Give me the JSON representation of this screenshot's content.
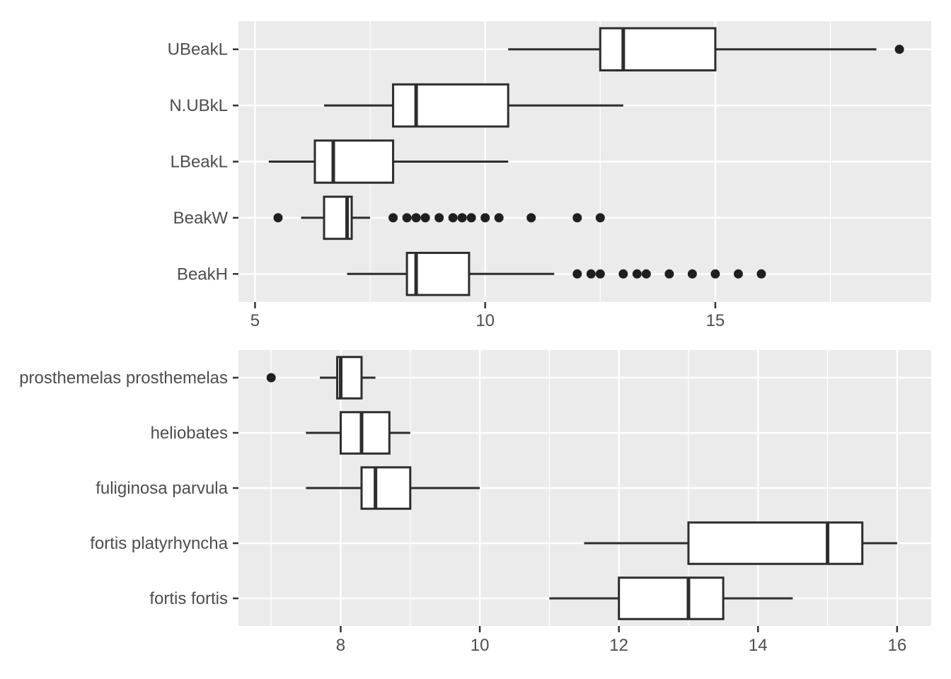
{
  "style": {
    "page_bg": "#FFFFFF",
    "panel_bg": "#EBEBEB",
    "grid_color": "#FFFFFF",
    "box_fill": "#FFFFFF",
    "box_stroke": "#2D2D2D",
    "outlier_color": "#1F1F1F",
    "axis_text_color": "#4D4D4D",
    "tick_color": "#333333"
  },
  "chart_data": [
    {
      "type": "boxplot",
      "orientation": "horizontal",
      "title": "",
      "xlabel": "",
      "ylabel": "",
      "grid": "on",
      "legend": "none",
      "xlim": [
        4.64,
        19.69
      ],
      "x_ticks": [
        5,
        10,
        15
      ],
      "x_minor": [
        7.5,
        12.5,
        17.5
      ],
      "categories": [
        "UBeakL",
        "N.UBkL",
        "LBeakL",
        "BeakW",
        "BeakH"
      ],
      "series": [
        {
          "category": "UBeakL",
          "whisker_low": 10.5,
          "q1": 12.5,
          "median": 13.0,
          "q3": 15.0,
          "whisker_high": 18.5,
          "outliers": [
            19.0
          ]
        },
        {
          "category": "N.UBkL",
          "whisker_low": 6.5,
          "q1": 8.0,
          "median": 8.5,
          "q3": 10.5,
          "whisker_high": 13.0,
          "outliers": []
        },
        {
          "category": "LBeakL",
          "whisker_low": 5.3,
          "q1": 6.3,
          "median": 6.7,
          "q3": 8.0,
          "whisker_high": 10.5,
          "outliers": []
        },
        {
          "category": "BeakW",
          "whisker_low": 6.0,
          "q1": 6.5,
          "median": 7.0,
          "q3": 7.1,
          "whisker_high": 7.5,
          "outliers": [
            5.5,
            8.0,
            8.3,
            8.5,
            8.7,
            9.0,
            9.3,
            9.5,
            9.7,
            10.0,
            10.3,
            11.0,
            12.0,
            12.5
          ]
        },
        {
          "category": "BeakH",
          "whisker_low": 7.0,
          "q1": 8.3,
          "median": 8.5,
          "q3": 9.65,
          "whisker_high": 11.5,
          "outliers": [
            12.0,
            12.3,
            12.5,
            13.0,
            13.3,
            13.5,
            14.0,
            14.5,
            15.0,
            15.5,
            16.0
          ]
        }
      ]
    },
    {
      "type": "boxplot",
      "orientation": "horizontal",
      "title": "",
      "xlabel": "",
      "ylabel": "",
      "grid": "on",
      "legend": "none",
      "xlim": [
        6.53,
        16.49
      ],
      "x_ticks": [
        8,
        10,
        12,
        14,
        16
      ],
      "x_minor": [
        7,
        9,
        11,
        13,
        15
      ],
      "categories": [
        "prosthemelas prosthemelas",
        "heliobates",
        "fuliginosa parvula",
        "fortis platyrhyncha",
        "fortis fortis"
      ],
      "series": [
        {
          "category": "prosthemelas prosthemelas",
          "whisker_low": 7.7,
          "q1": 7.95,
          "median": 8.0,
          "q3": 8.3,
          "whisker_high": 8.5,
          "outliers": [
            7.0
          ]
        },
        {
          "category": "heliobates",
          "whisker_low": 7.5,
          "q1": 8.0,
          "median": 8.3,
          "q3": 8.7,
          "whisker_high": 9.0,
          "outliers": []
        },
        {
          "category": "fuliginosa parvula",
          "whisker_low": 7.5,
          "q1": 8.3,
          "median": 8.5,
          "q3": 9.0,
          "whisker_high": 10.0,
          "outliers": []
        },
        {
          "category": "fortis platyrhyncha",
          "whisker_low": 11.5,
          "q1": 13.0,
          "median": 15.0,
          "q3": 15.5,
          "whisker_high": 16.0,
          "outliers": []
        },
        {
          "category": "fortis fortis",
          "whisker_low": 11.0,
          "q1": 12.0,
          "median": 13.0,
          "q3": 13.5,
          "whisker_high": 14.5,
          "outliers": []
        }
      ]
    }
  ]
}
